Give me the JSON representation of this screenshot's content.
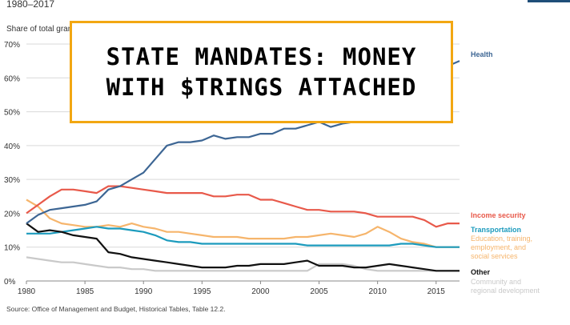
{
  "header": {
    "period": "1980–2017",
    "y_axis_title": "Share of total grants"
  },
  "banner": {
    "line1": "STATE MANDATES: MONEY",
    "line2": "WITH $TRINGS ATTACHED"
  },
  "source": "Source: Office of Management and Budget, Historical Tables, Table 12.2.",
  "colors": {
    "health": "#3d6694",
    "income_security": "#e8594a",
    "transportation": "#1c9bbd",
    "education": "#f6b56c",
    "other": "#111111",
    "community": "#c9c9c9",
    "banner_border": "#f2a712",
    "axis_text": "#333333"
  },
  "chart_data": {
    "type": "line",
    "title": "",
    "xlabel": "",
    "ylabel": "Share of total grants",
    "xlim": [
      1980,
      2017
    ],
    "ylim": [
      0,
      70
    ],
    "x_ticks": [
      "1980",
      "1985",
      "1990",
      "1995",
      "2000",
      "2005",
      "2010",
      "2015"
    ],
    "y_ticks": [
      "0%",
      "10%",
      "20%",
      "30%",
      "40%",
      "50%",
      "60%",
      "70%"
    ],
    "grid": true,
    "legend": "direct labels at right end of each line",
    "x": [
      1980,
      1981,
      1982,
      1983,
      1984,
      1985,
      1986,
      1987,
      1988,
      1989,
      1990,
      1991,
      1992,
      1993,
      1994,
      1995,
      1996,
      1997,
      1998,
      1999,
      2000,
      2001,
      2002,
      2003,
      2004,
      2005,
      2006,
      2007,
      2008,
      2009,
      2010,
      2011,
      2012,
      2013,
      2014,
      2015,
      2016,
      2017
    ],
    "series": [
      {
        "name": "Health",
        "key": "health",
        "values": [
          17,
          19.5,
          21,
          21.5,
          22,
          22.5,
          23.5,
          27,
          28,
          30,
          32,
          36,
          40,
          41,
          41,
          41.5,
          43,
          42,
          42.5,
          42.5,
          43.5,
          43.5,
          45,
          45,
          46,
          47,
          45.5,
          46.5,
          47,
          50,
          47.5,
          48,
          49.5,
          52,
          55,
          58.5,
          63.5,
          65
        ]
      },
      {
        "name": "Income security",
        "key": "income_security",
        "values": [
          20,
          22.5,
          25,
          27,
          27,
          26.5,
          26,
          28,
          28,
          27.5,
          27,
          26.5,
          26,
          26,
          26,
          26,
          25,
          25,
          25.5,
          25.5,
          24,
          24,
          23,
          22,
          21,
          21,
          20.5,
          20.5,
          20.5,
          20,
          19,
          19,
          19,
          19,
          18,
          16,
          17,
          17
        ]
      },
      {
        "name": "Transportation",
        "key": "transportation",
        "values": [
          14,
          14,
          14,
          14.5,
          15,
          15.5,
          16,
          15.5,
          15.5,
          15,
          14.5,
          13.5,
          12,
          11.5,
          11.5,
          11,
          11,
          11,
          11,
          11,
          11,
          11,
          11,
          11,
          10.5,
          10.5,
          10.5,
          10.5,
          10.5,
          10.5,
          10.5,
          10.5,
          11,
          11,
          10.5,
          10,
          10,
          10
        ]
      },
      {
        "name": "Education, training, employment, and social services",
        "key": "education",
        "values": [
          24,
          22,
          18.5,
          17,
          16.5,
          16,
          16,
          16.5,
          16,
          17,
          16,
          15.5,
          14.5,
          14.5,
          14,
          13.5,
          13,
          13,
          13,
          12.5,
          12.5,
          12.5,
          12.5,
          13,
          13,
          13.5,
          14,
          13.5,
          13,
          14,
          16,
          14.5,
          12.5,
          11.5,
          11,
          10,
          10,
          10
        ]
      },
      {
        "name": "Other",
        "key": "other",
        "values": [
          17,
          14.5,
          15,
          14.5,
          13.5,
          13,
          12.5,
          8.5,
          8,
          7,
          6.5,
          6,
          5.5,
          5,
          4.5,
          4,
          4,
          4,
          4.5,
          4.5,
          5,
          5,
          5,
          5.5,
          6,
          4.5,
          4.5,
          4.5,
          4,
          4,
          4.5,
          5,
          4.5,
          4,
          3.5,
          3,
          3,
          3
        ]
      },
      {
        "name": "Community and regional development",
        "key": "community",
        "values": [
          7,
          6.5,
          6,
          5.5,
          5.5,
          5,
          4.5,
          4,
          4,
          3.5,
          3.5,
          3,
          3,
          3,
          3,
          3,
          3,
          3,
          3,
          3,
          3,
          3,
          3,
          3,
          3,
          5,
          5,
          5,
          4.5,
          3.5,
          3,
          3,
          3,
          3,
          3,
          3,
          3,
          3
        ]
      }
    ]
  }
}
